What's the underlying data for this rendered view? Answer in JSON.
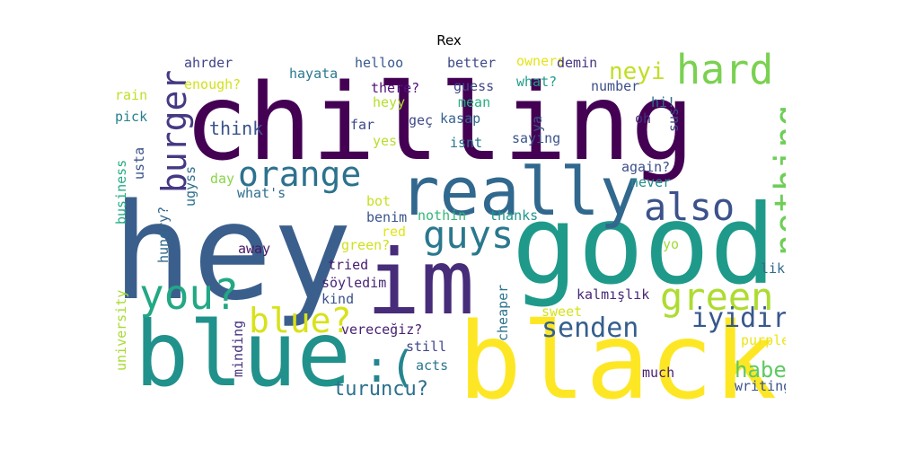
{
  "title": "Rex",
  "words": {
    "chilling": "chilling",
    "hey": "hey",
    "good": "good",
    "black": "black",
    "blue1": "blue",
    "im": "im",
    "really": "really",
    "orange": "orange",
    "hard": "hard",
    "nothing": "nothing",
    "burger": "burger",
    "also": "also",
    "guys": "guys",
    "you": "you?",
    "green": "green",
    "blue2": "blue?",
    "senden": "senden",
    "iyidir": "iyidir",
    "smile": ":(",
    "haber": "haber",
    "turuncu": "turuncu?",
    "neyi": "neyi",
    "ahrder": "ahrder",
    "enough": "enough?",
    "hayata": "hayata",
    "helloo": "helloo",
    "better": "better",
    "owners": "owners",
    "demin": "demin",
    "rain": "rain",
    "pick": "pick",
    "think": "think",
    "there": "there?",
    "heyy": "heyy",
    "guess": "guess",
    "mean": "mean",
    "kasap": "kasap",
    "what": "what?",
    "number": "number",
    "hi": "hi!",
    "far": "far",
    "gec": "geç",
    "yes": "yes",
    "isnt": "isnt",
    "ya": "ya",
    "oh": "oh",
    "sus": "sus",
    "usta": "usta",
    "saying": "saying",
    "business": "business",
    "ugyss": "ugyss",
    "day": "day",
    "whats": "what's",
    "again": "again?",
    "never": "never",
    "bot": "bot",
    "benim": "benim",
    "nothin": "nothin",
    "thanks": "thanks",
    "hungry": "hungry?",
    "red": "red",
    "green_q": "green?",
    "away": "away",
    "yo": "yo",
    "tried": "tried",
    "like": "like",
    "soyledim": "söyledim",
    "kind": "kind",
    "university": "university",
    "kalmislik": "kalmışlık",
    "cheaper": "cheaper",
    "sweet": "sweet",
    "minding": "minding",
    "verecegiz": "vereceğiz?",
    "still": "still",
    "purple": "purple",
    "acts": "acts",
    "much": "much",
    "writing": "writing"
  },
  "colors": {
    "palette": [
      "#440154",
      "#3b528b",
      "#21918c",
      "#5ec962",
      "#fde725"
    ]
  }
}
